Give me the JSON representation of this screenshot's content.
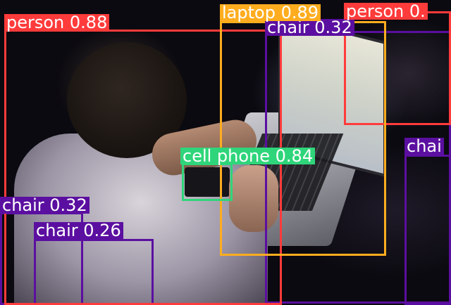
{
  "colors": {
    "person": "#ff3b3b",
    "laptop": "#ffad1f",
    "chair": "#5b0fa0",
    "cell_phone": "#2fd57a"
  },
  "detections": [
    {
      "name": "det-person-main",
      "class": "person",
      "label": "person 0.88"
    },
    {
      "name": "det-laptop",
      "class": "laptop",
      "label": "laptop 0.89"
    },
    {
      "name": "det-person-bg",
      "class": "person",
      "label": "person 0."
    },
    {
      "name": "det-chair-top",
      "class": "chair",
      "label": "chair 0.32"
    },
    {
      "name": "det-cell-phone",
      "class": "cell_phone",
      "label": "cell phone 0.84"
    },
    {
      "name": "det-chair-right",
      "class": "chair",
      "label": "chai"
    },
    {
      "name": "det-chair-left",
      "class": "chair",
      "label": "chair 0.32"
    },
    {
      "name": "det-chair-left2",
      "class": "chair",
      "label": "chair 0.26"
    }
  ]
}
